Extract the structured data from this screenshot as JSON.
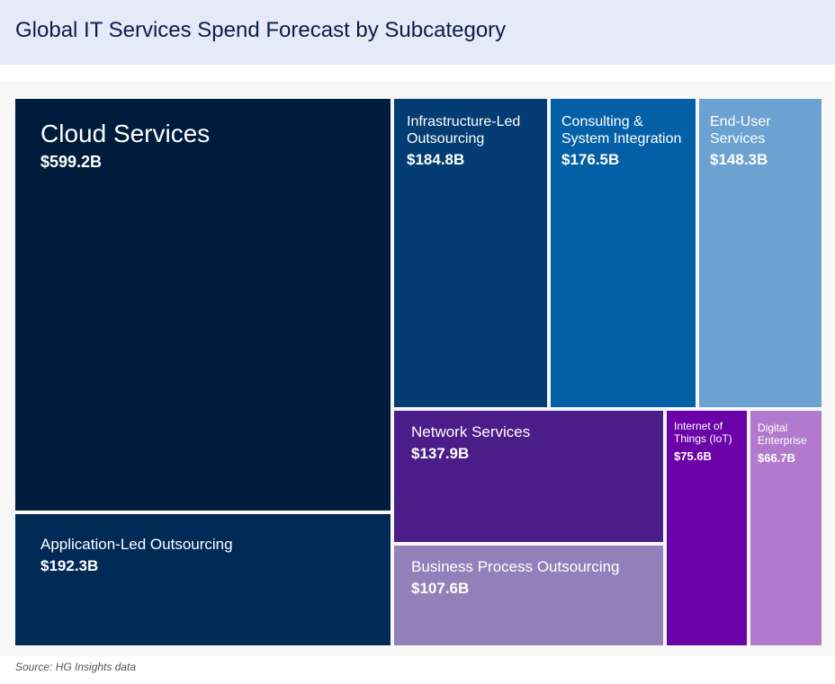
{
  "chart_data": {
    "type": "treemap",
    "title": "Global IT Services Spend Forecast by Subcategory",
    "categories": [
      "Cloud Services",
      "Application-Led Outsourcing",
      "Infrastructure-Led Outsourcing",
      "Consulting & System Integration",
      "End-User Services",
      "Network Services",
      "Business Process Outsourcing",
      "Internet of Things (IoT)",
      "Digital Enterprise"
    ],
    "values": [
      599.2,
      192.3,
      184.8,
      176.5,
      148.3,
      137.9,
      107.6,
      75.6,
      66.7
    ],
    "value_labels": [
      "$599.2B",
      "$192.3B",
      "$184.8B",
      "$176.5B",
      "$148.3B",
      "$137.9B",
      "$107.6B",
      "$75.6B",
      "$66.7B"
    ],
    "colors": [
      "#001c3c",
      "#022a57",
      "#023c72",
      "#0360a7",
      "#6ca2d1",
      "#4a1d89",
      "#9380ba",
      "#6b02a8",
      "#b17acd"
    ],
    "source": "Source: HG Insights data"
  }
}
